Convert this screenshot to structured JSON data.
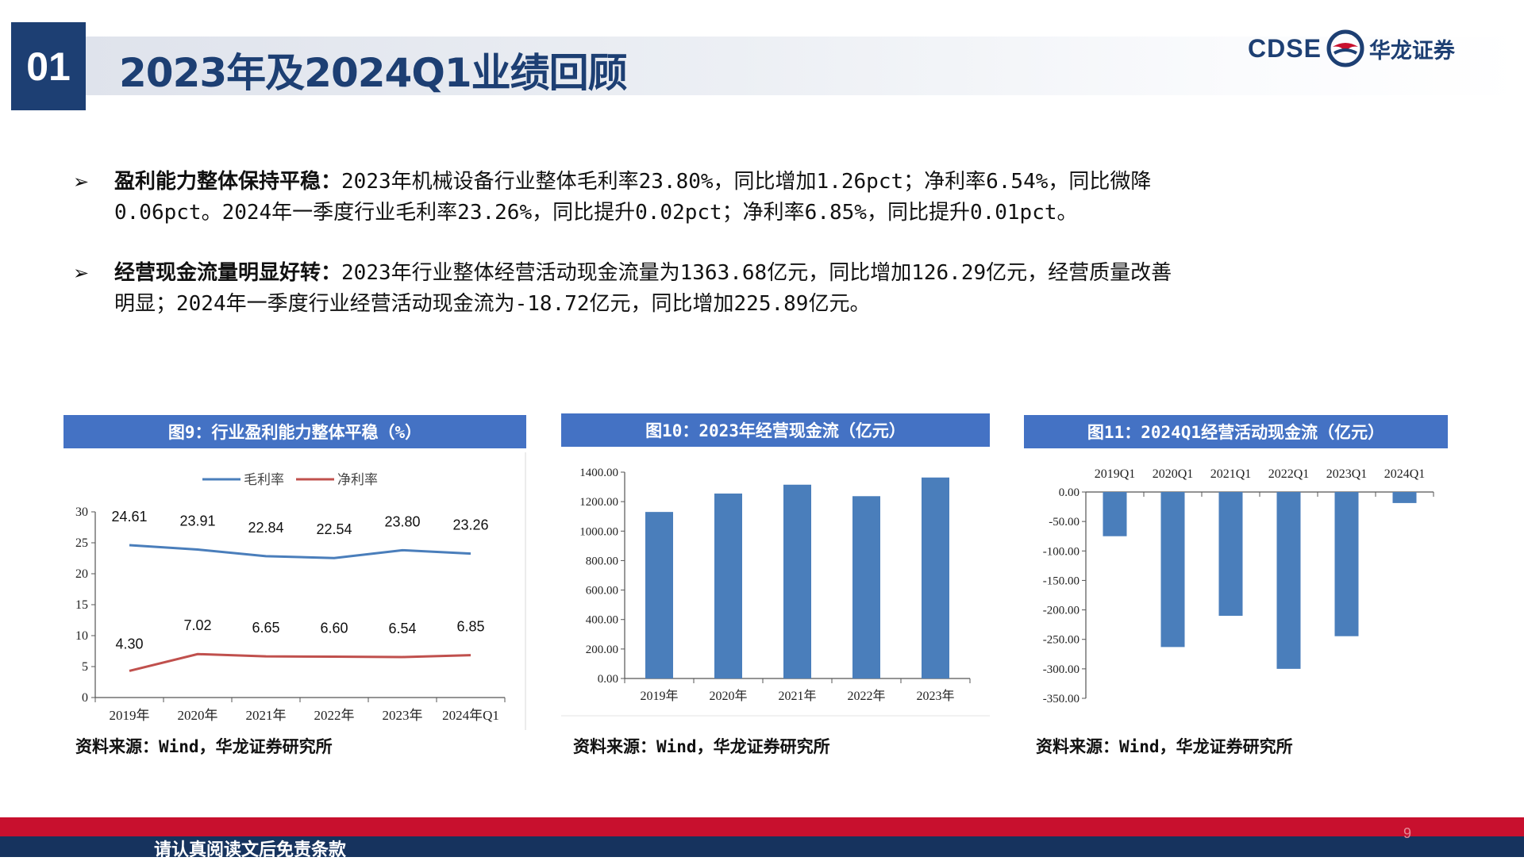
{
  "header": {
    "section_number": "01",
    "title": "2023年及2024Q1业绩回顾",
    "logo_en": "CDSE",
    "logo_cn": "华龙证券"
  },
  "bullets": [
    {
      "bold": "盈利能力整体保持平稳：",
      "line1": "2023年机械设备行业整体毛利率23.80%，同比增加1.26pct；净利率6.54%，同比微降",
      "line2": "0.06pct。2024年一季度行业毛利率23.26%，同比提升0.02pct；净利率6.85%，同比提升0.01pct。"
    },
    {
      "bold": "经营现金流量明显好转：",
      "line1": "2023年行业整体经营活动现金流量为1363.68亿元，同比增加126.29亿元，经营质量改善",
      "line2": "明显；2024年一季度行业经营活动现金流为-18.72亿元，同比增加225.89亿元。"
    }
  ],
  "panels": [
    {
      "title": "图9：行业盈利能力整体平稳（%）",
      "source": "资料来源：Wind，华龙证券研究所"
    },
    {
      "title": "图10：2023年经营现金流（亿元）",
      "source": "资料来源：Wind，华龙证券研究所"
    },
    {
      "title": "图11：2024Q1经营活动现金流（亿元）",
      "source": "资料来源：Wind，华龙证券研究所"
    }
  ],
  "chart_data": [
    {
      "type": "line",
      "categories": [
        "2019年",
        "2020年",
        "2021年",
        "2022年",
        "2023年",
        "2024年Q1"
      ],
      "series": [
        {
          "name": "毛利率",
          "color": "#4a7ebb",
          "values": [
            24.61,
            23.91,
            22.84,
            22.54,
            23.8,
            23.26
          ],
          "labels": [
            "24.61",
            "23.91",
            "22.84",
            "22.54",
            "23.80",
            "23.26"
          ]
        },
        {
          "name": "净利率",
          "color": "#c0504d",
          "values": [
            4.3,
            7.02,
            6.65,
            6.6,
            6.54,
            6.85
          ],
          "labels": [
            "4.30",
            "7.02",
            "6.65",
            "6.60",
            "6.54",
            "6.85"
          ]
        }
      ],
      "ylim": [
        0,
        30
      ],
      "yticks": [
        "0",
        "5",
        "10",
        "15",
        "20",
        "25",
        "30"
      ],
      "ytick_values": [
        0,
        5,
        10,
        15,
        20,
        25,
        30
      ],
      "legend": "top"
    },
    {
      "type": "bar",
      "categories": [
        "2019年",
        "2020年",
        "2021年",
        "2022年",
        "2023年"
      ],
      "values": [
        1130,
        1255,
        1315,
        1237,
        1363.68
      ],
      "color": "#4a7ebb",
      "ylim": [
        0,
        1400
      ],
      "yticks": [
        "0.00",
        "200.00",
        "400.00",
        "600.00",
        "800.00",
        "1000.00",
        "1200.00",
        "1400.00"
      ],
      "ytick_values": [
        0,
        200,
        400,
        600,
        800,
        1000,
        1200,
        1400
      ]
    },
    {
      "type": "bar",
      "categories": [
        "2019Q1",
        "2020Q1",
        "2021Q1",
        "2022Q1",
        "2023Q1",
        "2024Q1"
      ],
      "values": [
        -75,
        -263,
        -210,
        -300,
        -244.61,
        -18.72
      ],
      "color": "#4a7ebb",
      "ylim": [
        -350,
        0
      ],
      "yticks": [
        "0.00",
        "-50.00",
        "-100.00",
        "-150.00",
        "-200.00",
        "-250.00",
        "-300.00",
        "-350.00"
      ],
      "ytick_values": [
        0,
        -50,
        -100,
        -150,
        -200,
        -250,
        -300,
        -350
      ],
      "xaxis_position": "top"
    }
  ],
  "footer": {
    "disclaimer": "请认真阅读文后免责条款",
    "page_number": "9"
  }
}
